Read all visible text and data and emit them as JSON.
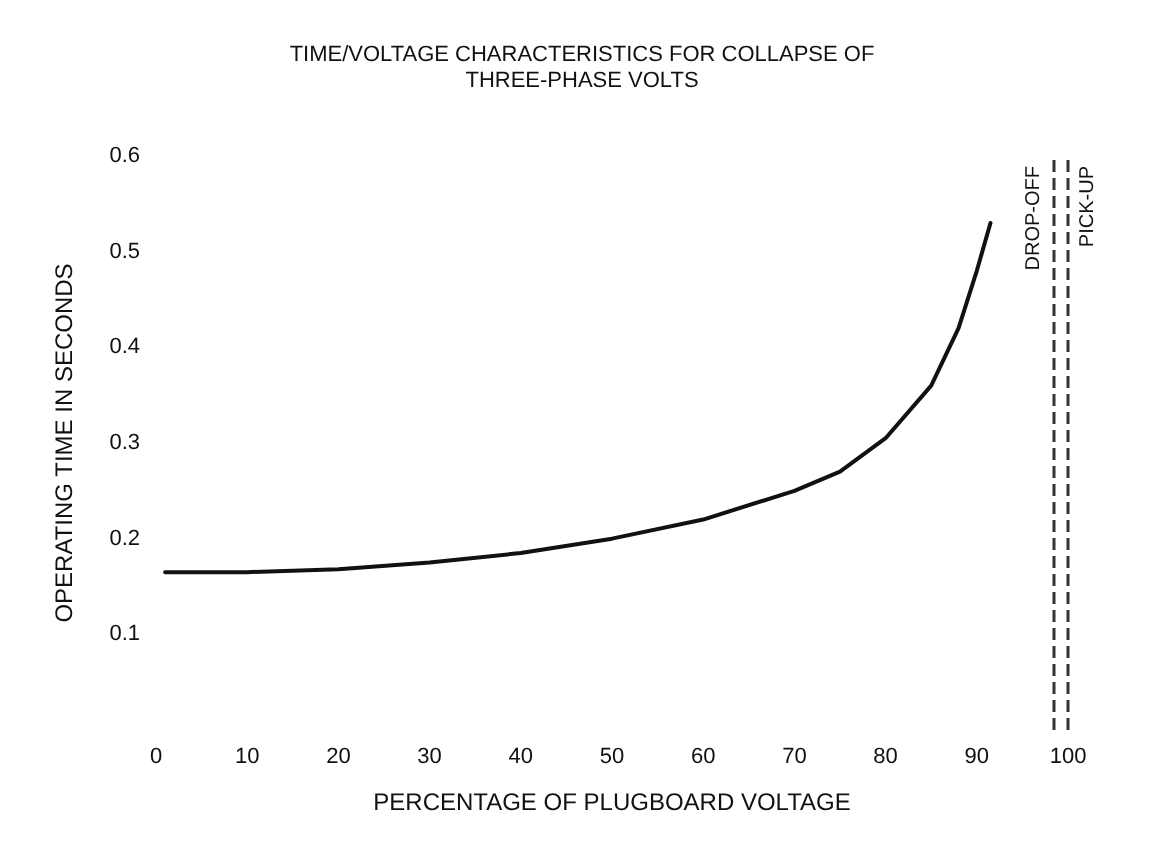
{
  "chart_data": {
    "type": "line",
    "title": "TIME/VOLTAGE CHARACTERISTICS FOR COLLAPSE OF\nTHREE-PHASE VOLTS",
    "xlabel": "PERCENTAGE OF PLUGBOARD VOLTAGE",
    "ylabel": "OPERATING TIME IN SECONDS",
    "series": [
      {
        "color": "#111111",
        "x": [
          1,
          10,
          20,
          30,
          40,
          50,
          60,
          70,
          75,
          80,
          85,
          88,
          90,
          91.5
        ],
        "values": [
          0.165,
          0.165,
          0.168,
          0.175,
          0.185,
          0.2,
          0.22,
          0.25,
          0.27,
          0.305,
          0.36,
          0.42,
          0.48,
          0.53
        ]
      }
    ],
    "xlim": [
      0,
      100
    ],
    "xticks": [
      0,
      10,
      20,
      30,
      40,
      50,
      60,
      70,
      80,
      90,
      100
    ],
    "ylim": [
      0,
      0.6
    ],
    "yticks": [
      0.1,
      0.2,
      0.3,
      0.4,
      0.5,
      0.6
    ],
    "ref_lines": [
      {
        "axis": "x",
        "value": 98.5,
        "label": "DROP-OFF",
        "line_style": "dashed",
        "color": "#333333"
      },
      {
        "axis": "x",
        "value": 100,
        "label": "PICK-UP",
        "line_style": "dashed",
        "color": "#333333"
      }
    ],
    "grid": false,
    "marker": "none",
    "line_style": "solid"
  }
}
